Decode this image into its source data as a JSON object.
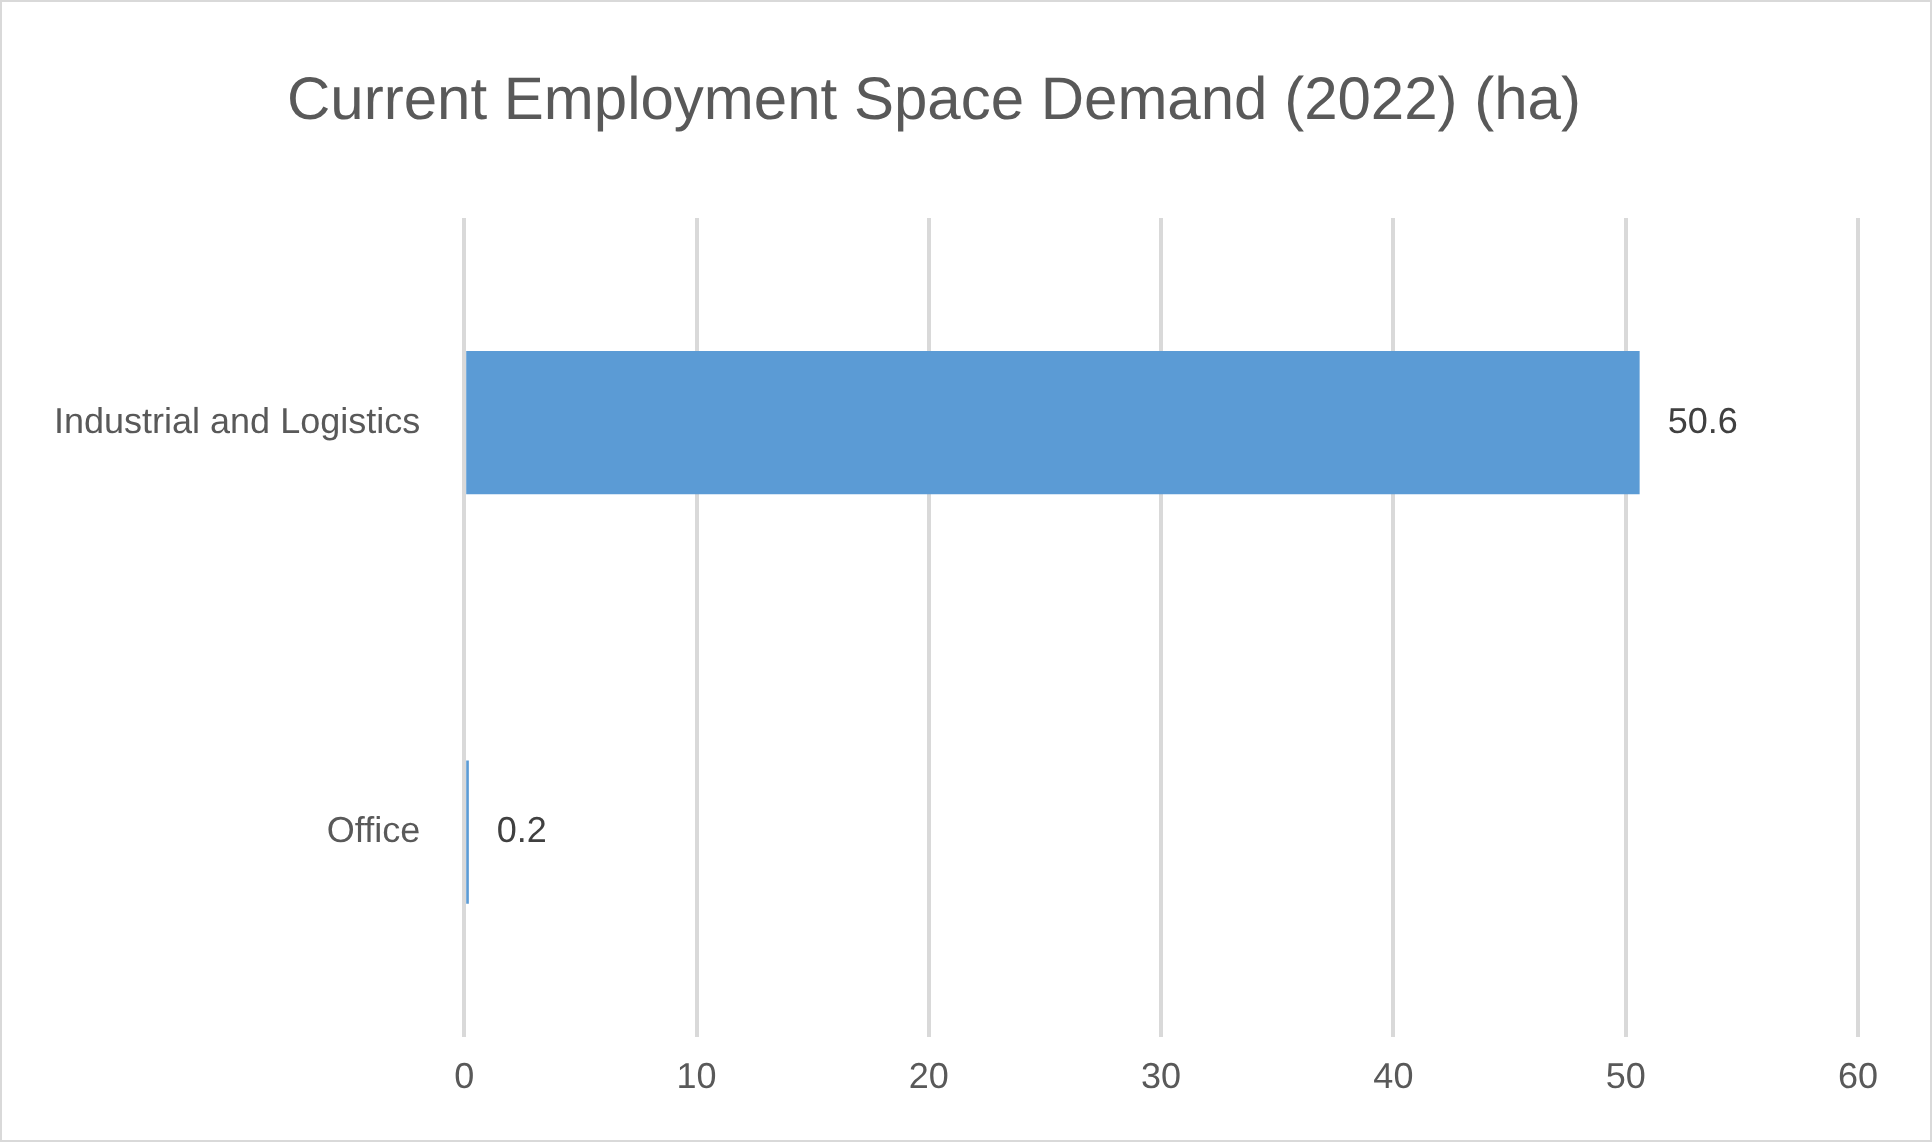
{
  "chart_data": {
    "type": "bar",
    "orientation": "horizontal",
    "title": "Current Employment Space Demand (2022) (ha)",
    "categories": [
      "Industrial and Logistics",
      "Office"
    ],
    "values": [
      50.6,
      0.2
    ],
    "color": "#5b9bd5",
    "xlim": [
      0,
      60
    ],
    "xticks": [
      0,
      10,
      20,
      30,
      40,
      50,
      60
    ],
    "grid": "x",
    "data_labels": true
  }
}
